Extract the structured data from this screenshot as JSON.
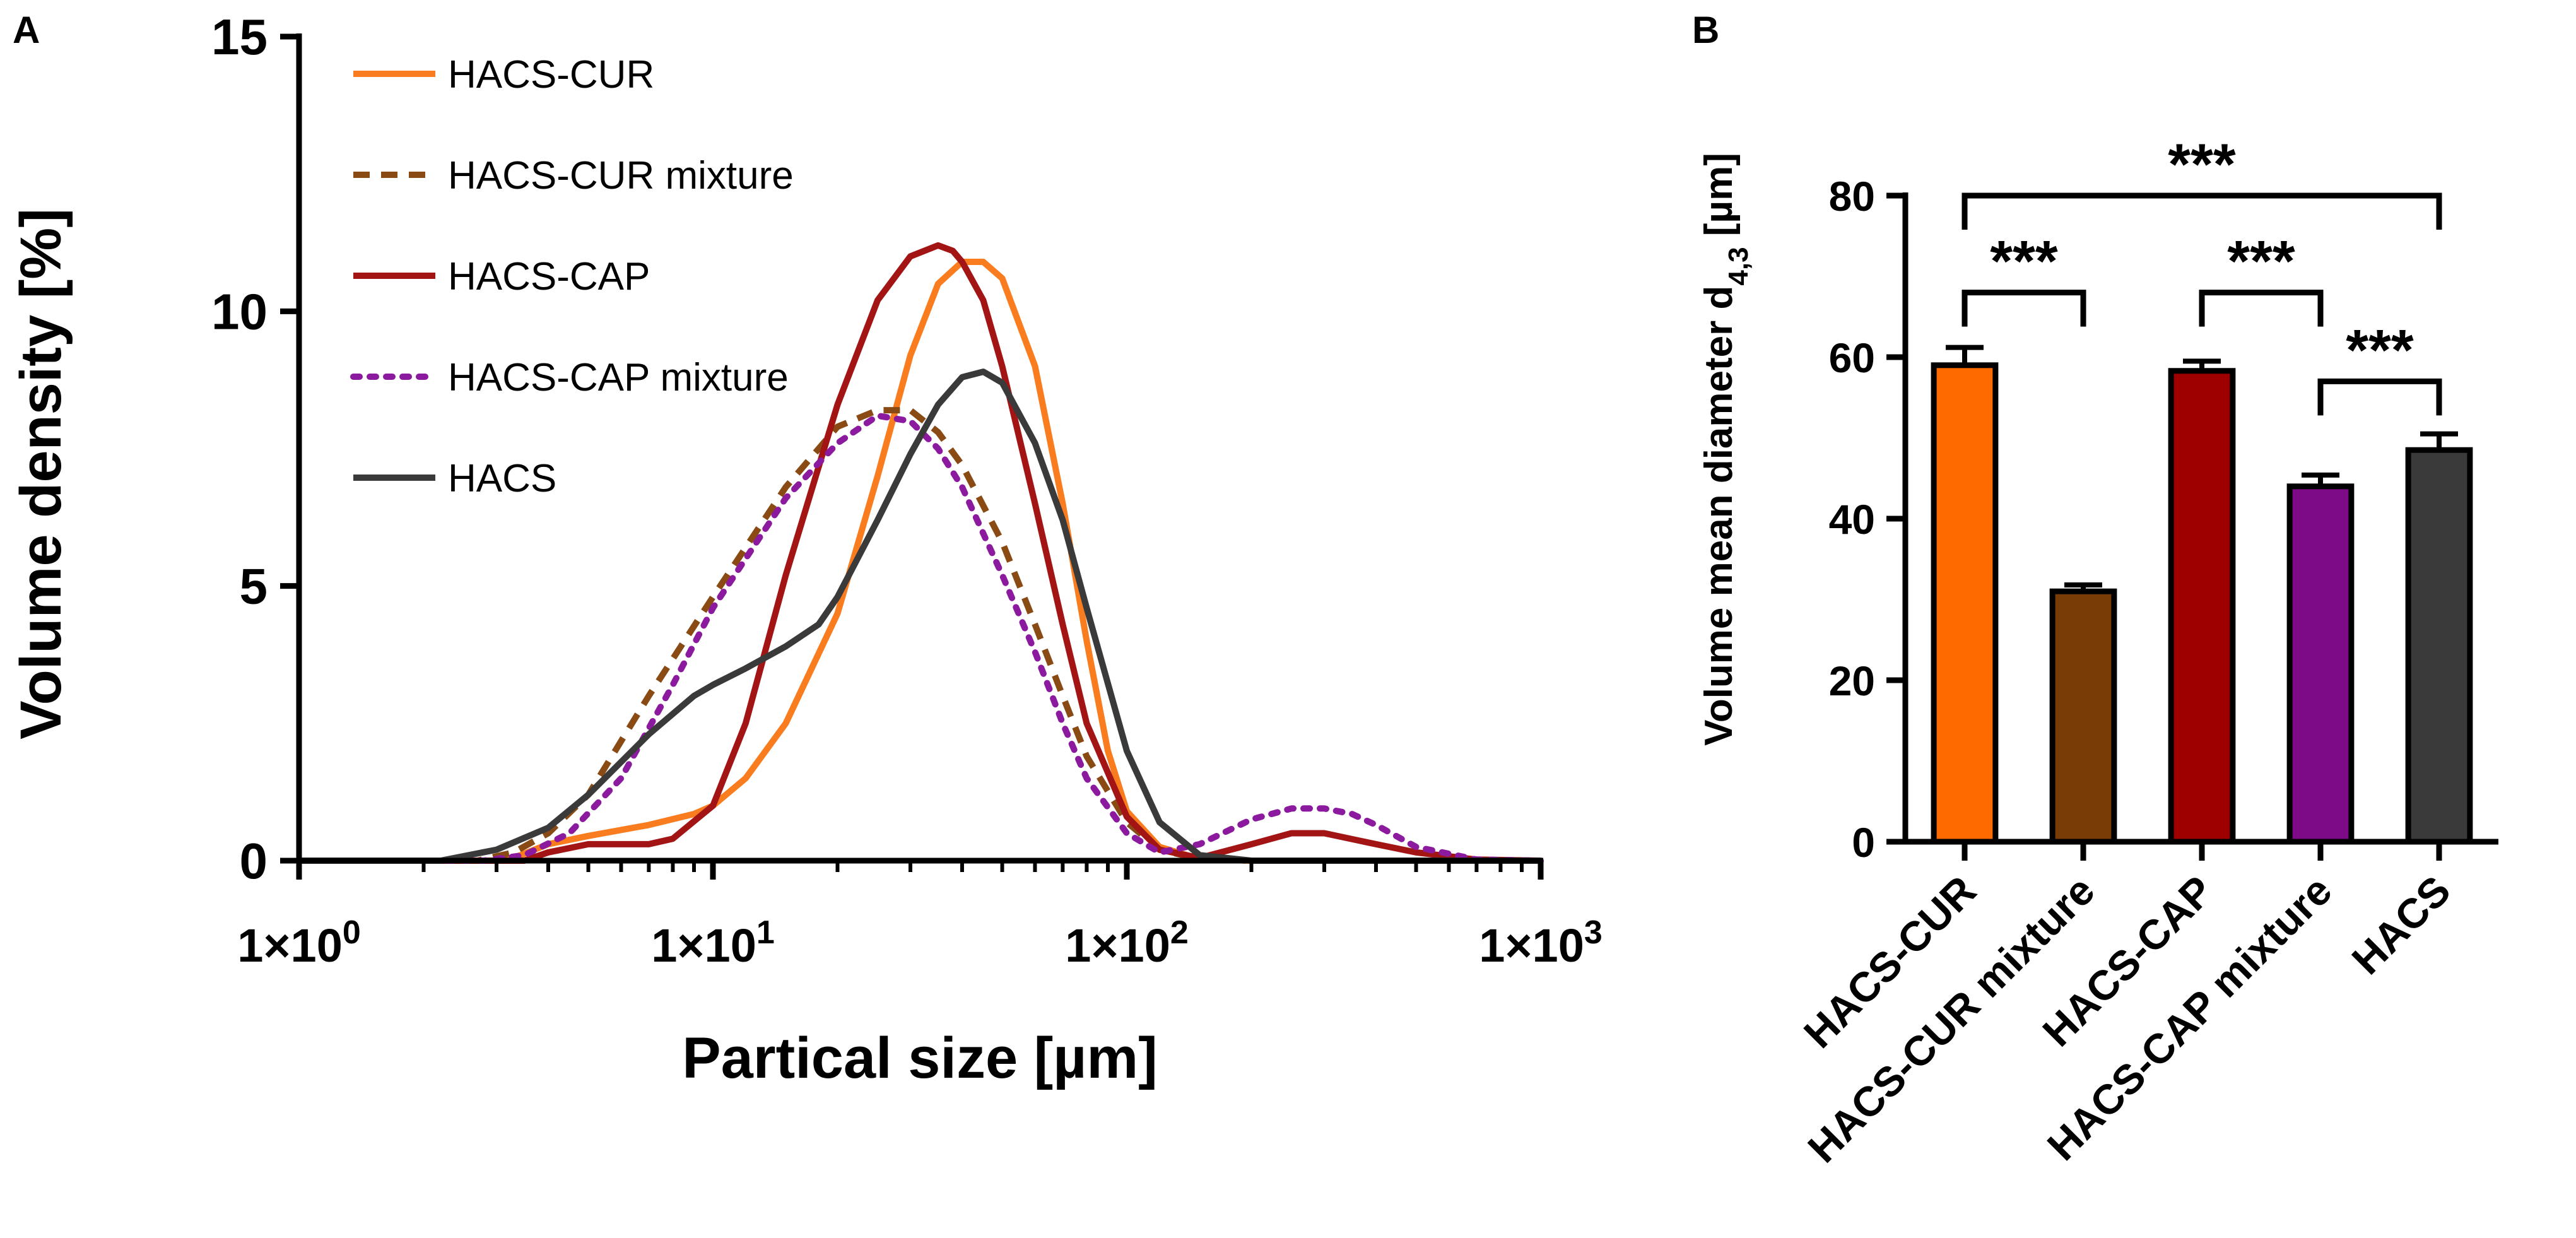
{
  "chart_data": [
    {
      "panel": "A",
      "type": "line",
      "xscale": "log",
      "xlabel": "Partical size [µm]",
      "ylabel": "Volume density [%]",
      "xlim": [
        1,
        1000
      ],
      "ylim": [
        0,
        15
      ],
      "x_tick_labels": [
        {
          "base": "1×10",
          "exp": "0"
        },
        {
          "base": "1×10",
          "exp": "1"
        },
        {
          "base": "1×10",
          "exp": "2"
        },
        {
          "base": "1×10",
          "exp": "3"
        }
      ],
      "y_tick_labels": [
        "0",
        "5",
        "10",
        "15"
      ],
      "legend_position": "top-left",
      "series": [
        {
          "name": "HACS-CUR",
          "color": "#f97c1f",
          "style": "solid",
          "x": [
            1,
            3,
            3.3,
            4,
            5,
            7,
            9,
            10,
            12,
            15,
            20,
            25,
            30,
            35,
            40,
            45,
            50,
            60,
            70,
            80,
            90,
            100,
            120,
            150,
            200,
            1000
          ],
          "y": [
            0,
            0,
            0.05,
            0.3,
            0.45,
            0.65,
            0.85,
            1.0,
            1.5,
            2.5,
            4.5,
            7.0,
            9.2,
            10.5,
            10.9,
            10.9,
            10.6,
            9.0,
            6.5,
            4.0,
            2.0,
            0.9,
            0.25,
            0.03,
            0,
            0
          ]
        },
        {
          "name": "HACS-CUR mixture",
          "color": "#8a4a14",
          "style": "dashed",
          "x": [
            1,
            2.7,
            3.3,
            4,
            5,
            7,
            10,
            15,
            20,
            25,
            30,
            35,
            40,
            50,
            60,
            70,
            80,
            100,
            120,
            150,
            200,
            1000
          ],
          "y": [
            0,
            0,
            0.15,
            0.5,
            1.2,
            3.0,
            4.8,
            6.8,
            7.9,
            8.2,
            8.2,
            7.8,
            7.2,
            5.8,
            4.3,
            3.0,
            1.9,
            0.7,
            0.2,
            0.03,
            0,
            0
          ]
        },
        {
          "name": "HACS-CAP",
          "color": "#a31515",
          "style": "solid",
          "x": [
            1,
            3.5,
            4,
            5,
            7,
            8,
            10,
            12,
            15,
            20,
            25,
            30,
            35,
            38,
            40,
            45,
            50,
            60,
            70,
            80,
            100,
            120,
            150,
            200,
            250,
            300,
            400,
            500,
            700,
            1000
          ],
          "y": [
            0,
            0,
            0.15,
            0.3,
            0.3,
            0.4,
            1.0,
            2.5,
            5.2,
            8.3,
            10.2,
            11.0,
            11.2,
            11.1,
            10.9,
            10.2,
            9.0,
            6.5,
            4.3,
            2.5,
            0.8,
            0.2,
            0.05,
            0.3,
            0.5,
            0.5,
            0.3,
            0.15,
            0.02,
            0
          ]
        },
        {
          "name": "HACS-CAP mixture",
          "color": "#8b1a9e",
          "style": "dotted",
          "x": [
            1,
            2.8,
            3.5,
            4.5,
            6,
            8,
            10,
            15,
            20,
            25,
            30,
            35,
            40,
            50,
            60,
            70,
            80,
            100,
            120,
            150,
            200,
            250,
            300,
            350,
            400,
            500,
            700,
            1000
          ],
          "y": [
            0,
            0,
            0.1,
            0.5,
            1.5,
            3.2,
            4.6,
            6.6,
            7.6,
            8.1,
            8.0,
            7.5,
            6.8,
            5.2,
            3.8,
            2.5,
            1.5,
            0.5,
            0.15,
            0.3,
            0.75,
            0.95,
            0.95,
            0.85,
            0.65,
            0.25,
            0.02,
            0
          ]
        },
        {
          "name": "HACS",
          "color": "#3a3a3a",
          "style": "solid",
          "x": [
            1,
            2.2,
            3,
            4,
            5,
            7,
            9,
            10,
            12,
            15,
            18,
            20,
            25,
            30,
            35,
            40,
            45,
            50,
            60,
            70,
            80,
            100,
            120,
            150,
            200,
            1000
          ],
          "y": [
            0,
            0,
            0.2,
            0.6,
            1.2,
            2.3,
            3.0,
            3.2,
            3.5,
            3.9,
            4.3,
            4.8,
            6.2,
            7.4,
            8.3,
            8.8,
            8.9,
            8.7,
            7.6,
            6.2,
            4.6,
            2.0,
            0.7,
            0.1,
            0,
            0
          ]
        }
      ]
    },
    {
      "panel": "B",
      "type": "bar",
      "ylabel_main": "Volume mean diameter d",
      "ylabel_sub": "4,3",
      "ylabel_unit": " [µm]",
      "ylim": [
        0,
        80
      ],
      "y_ticks": [
        0,
        20,
        40,
        60,
        80
      ],
      "categories": [
        "HACS-CUR",
        "HACS-CUR mixture",
        "HACS-CAP",
        "HACS-CAP mixture",
        "HACS"
      ],
      "values": [
        59,
        31,
        58.3,
        44,
        48.5
      ],
      "errors": [
        2.2,
        0.8,
        1.2,
        1.4,
        2.0
      ],
      "colors": [
        "#ff6a00",
        "#7a3c06",
        "#9e0000",
        "#7d0a86",
        "#3a3a3a"
      ],
      "significance": [
        {
          "from": 0,
          "to": 4,
          "label": "***",
          "y": 80
        },
        {
          "from": 0,
          "to": 1,
          "label": "***",
          "y": 68
        },
        {
          "from": 2,
          "to": 3,
          "label": "***",
          "y": 68
        },
        {
          "from": 3,
          "to": 4,
          "label": "***",
          "y": 57
        }
      ]
    }
  ],
  "panel_labels": {
    "a": "A",
    "b": "B"
  }
}
